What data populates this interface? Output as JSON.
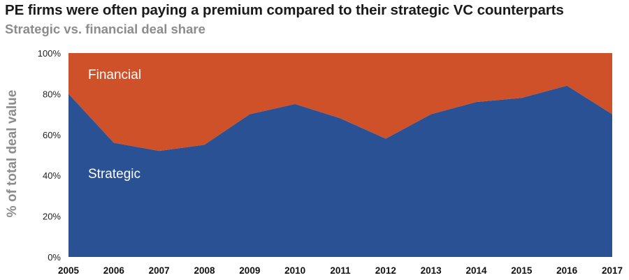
{
  "chart_data": {
    "type": "area",
    "title": "PE firms were often paying a premium compared to their strategic VC counterparts",
    "subtitle": "Strategic vs. financial deal share",
    "ylabel": "% of total deal value",
    "xlabel": "",
    "categories": [
      "2005",
      "2006",
      "2007",
      "2008",
      "2009",
      "2010",
      "2011",
      "2012",
      "2013",
      "2014",
      "2015",
      "2016",
      "2017"
    ],
    "ylim": [
      0,
      100
    ],
    "yticks": [
      "0%",
      "20%",
      "40%",
      "60%",
      "80%",
      "100%"
    ],
    "stacked": true,
    "series": [
      {
        "name": "Strategic",
        "color": "#2a5193",
        "values": [
          80,
          56,
          52,
          55,
          70,
          75,
          68,
          58,
          70,
          76,
          78,
          84,
          70
        ]
      },
      {
        "name": "Financial",
        "color": "#cf512a",
        "values": [
          20,
          44,
          48,
          45,
          30,
          25,
          32,
          42,
          30,
          24,
          22,
          16,
          30
        ]
      }
    ],
    "annotations": [
      "Financial",
      "Strategic"
    ]
  }
}
